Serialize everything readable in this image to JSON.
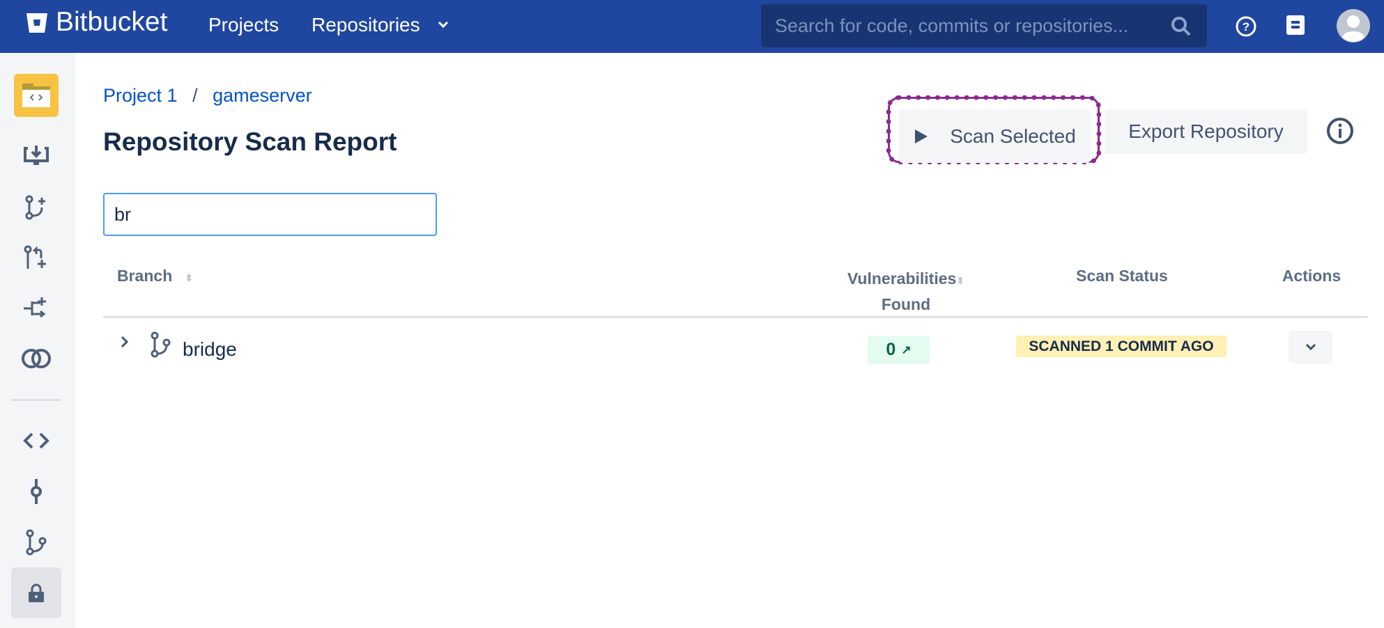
{
  "header": {
    "brand": "Bitbucket",
    "nav": [
      "Projects",
      "Repositories"
    ],
    "search_placeholder": "Search for code, commits or repositories..."
  },
  "sidebar": {
    "items": [
      "repository",
      "clone",
      "create-branch",
      "create-pull-request",
      "create-fork",
      "compare",
      "source",
      "commits",
      "branches",
      "security"
    ],
    "active": "security"
  },
  "breadcrumb": {
    "project": "Project 1",
    "separator": "/",
    "repo": "gameserver"
  },
  "page_title": "Repository Scan Report",
  "actions": {
    "scan": "Scan Selected",
    "export": "Export Repository"
  },
  "filter": {
    "value": "br"
  },
  "table": {
    "headers": {
      "branch": "Branch",
      "vuln_line1": "Vulnerabilities",
      "vuln_line2": "Found",
      "status": "Scan Status",
      "actions": "Actions"
    },
    "rows": [
      {
        "branch": "bridge",
        "vulnerabilities": "0",
        "status": "SCANNED 1 COMMIT AGO"
      }
    ]
  },
  "colors": {
    "header": "#2047a0",
    "link": "#0052cc",
    "highlight": "#8a2b8f",
    "status_bg": "#fff0b3",
    "vuln_bg": "#e3fcef"
  }
}
